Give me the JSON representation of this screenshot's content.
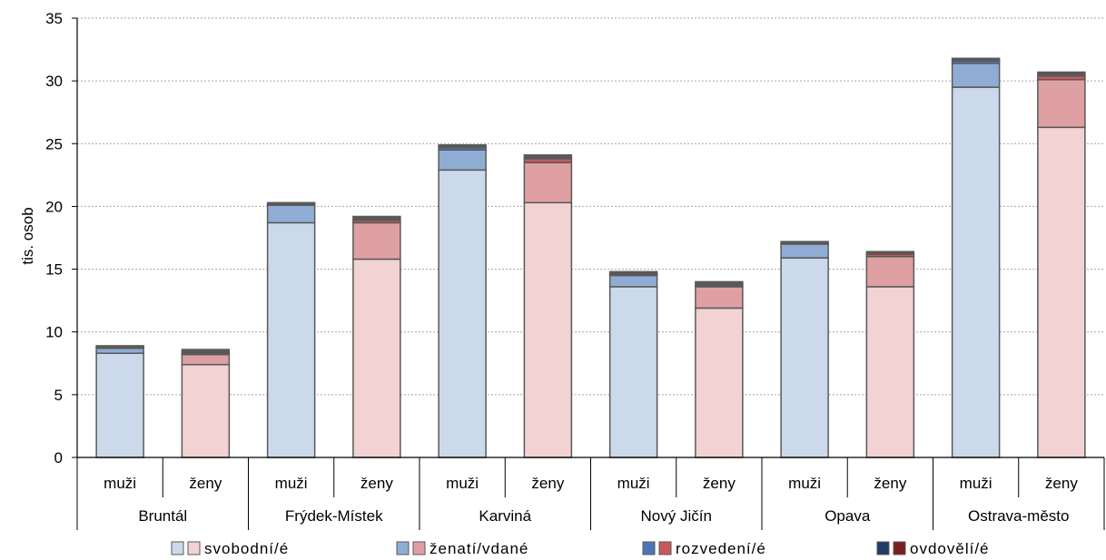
{
  "chart_data": {
    "type": "bar",
    "stacked": true,
    "title": "",
    "xlabel": "",
    "ylabel": "tis. osob",
    "ylim": [
      0,
      35
    ],
    "yticks": [
      0,
      5,
      10,
      15,
      20,
      25,
      30,
      35
    ],
    "grid": "horizontal dotted",
    "legend_position": "bottom",
    "groups": [
      "Bruntál",
      "Frýdek-Místek",
      "Karviná",
      "Nový Jičín",
      "Opava",
      "Ostrava-město"
    ],
    "categories": [
      "muži",
      "ženy",
      "muži",
      "ženy",
      "muži",
      "ženy",
      "muži",
      "ženy",
      "muži",
      "ženy",
      "muži",
      "ženy"
    ],
    "series": [
      {
        "name": "svobodní/é",
        "values": [
          8.3,
          7.4,
          18.7,
          15.8,
          22.9,
          20.3,
          13.6,
          11.9,
          15.9,
          13.6,
          29.5,
          26.3
        ]
      },
      {
        "name": "ženatí/vdané",
        "values": [
          0.4,
          0.8,
          1.4,
          2.9,
          1.6,
          3.2,
          0.9,
          1.7,
          1.1,
          2.4,
          1.9,
          3.8
        ]
      },
      {
        "name": "rozvedení/é",
        "values": [
          0.1,
          0.1,
          0.1,
          0.2,
          0.2,
          0.3,
          0.1,
          0.1,
          0.1,
          0.2,
          0.2,
          0.3
        ]
      },
      {
        "name": "ovdovělí/é",
        "values": [
          0.1,
          0.3,
          0.1,
          0.3,
          0.2,
          0.3,
          0.2,
          0.3,
          0.1,
          0.2,
          0.2,
          0.3
        ]
      }
    ],
    "colors": {
      "muzi": [
        "#ccd9ea",
        "#8fadd4",
        "#4a76b8",
        "#1f3b66"
      ],
      "zeny": [
        "#f2d2d3",
        "#dea0a2",
        "#c9585c",
        "#7a1f22"
      ],
      "cap": "#595959",
      "grid": "#a6a6a6"
    }
  }
}
